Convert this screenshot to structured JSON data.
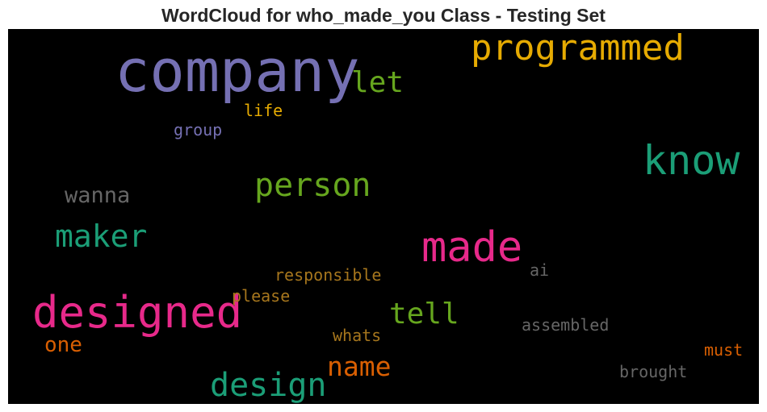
{
  "chart_data": {
    "type": "wordcloud",
    "title": "WordCloud for who_made_you Class - Testing Set",
    "background": "#000000",
    "words": [
      {
        "text": "company",
        "weight": 1.0,
        "color": "#7570b3"
      },
      {
        "text": "designed",
        "weight": 0.75,
        "color": "#e7298a"
      },
      {
        "text": "made",
        "weight": 0.72,
        "color": "#e7298a"
      },
      {
        "text": "know",
        "weight": 0.68,
        "color": "#1b9e77"
      },
      {
        "text": "programmed",
        "weight": 0.6,
        "color": "#e6ab02"
      },
      {
        "text": "person",
        "weight": 0.55,
        "color": "#66a61e"
      },
      {
        "text": "design",
        "weight": 0.54,
        "color": "#1b9e77"
      },
      {
        "text": "maker",
        "weight": 0.52,
        "color": "#1b9e77"
      },
      {
        "text": "let",
        "weight": 0.5,
        "color": "#66a61e"
      },
      {
        "text": "tell",
        "weight": 0.49,
        "color": "#66a61e"
      },
      {
        "text": "name",
        "weight": 0.48,
        "color": "#d95f02"
      },
      {
        "text": "wanna",
        "weight": 0.37,
        "color": "#666666"
      },
      {
        "text": "one",
        "weight": 0.36,
        "color": "#d95f02"
      },
      {
        "text": "life",
        "weight": 0.28,
        "color": "#e6ab02"
      },
      {
        "text": "group",
        "weight": 0.28,
        "color": "#7570b3"
      },
      {
        "text": "responsible",
        "weight": 0.28,
        "color": "#a6761d"
      },
      {
        "text": "please",
        "weight": 0.28,
        "color": "#a6761d"
      },
      {
        "text": "ai",
        "weight": 0.28,
        "color": "#666666"
      },
      {
        "text": "assembled",
        "weight": 0.28,
        "color": "#666666"
      },
      {
        "text": "whats",
        "weight": 0.28,
        "color": "#a6761d"
      },
      {
        "text": "must",
        "weight": 0.28,
        "color": "#d95f02"
      },
      {
        "text": "brought",
        "weight": 0.28,
        "color": "#666666"
      }
    ]
  }
}
